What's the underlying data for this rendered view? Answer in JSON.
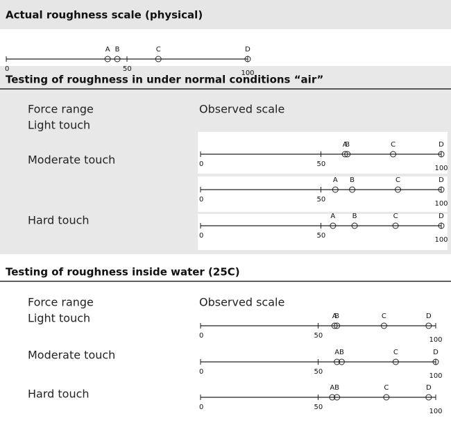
{
  "sections": [
    {
      "title": "Actual roughness scale (physical)",
      "scale": {
        "ticks": [
          0,
          50,
          100
        ],
        "points": [
          {
            "label": "A",
            "value": 42
          },
          {
            "label": "B",
            "value": 46
          },
          {
            "label": "C",
            "value": 63
          },
          {
            "label": "D",
            "value": 100
          }
        ]
      }
    },
    {
      "title": "Testing of roughness in under normal conditions “air”",
      "column_headers": [
        "Force range",
        "Observed scale"
      ],
      "rows": [
        {
          "label": "Light touch",
          "scale": {
            "ticks": [
              0,
              50,
              100
            ],
            "points": [
              {
                "label": "A",
                "value": 60
              },
              {
                "label": "B",
                "value": 61
              },
              {
                "label": "C",
                "value": 80
              },
              {
                "label": "D",
                "value": 100
              }
            ]
          }
        },
        {
          "label": "Moderate touch",
          "scale": {
            "ticks": [
              0,
              50,
              100
            ],
            "points": [
              {
                "label": "A",
                "value": 56
              },
              {
                "label": "B",
                "value": 63
              },
              {
                "label": "C",
                "value": 82
              },
              {
                "label": "D",
                "value": 100
              }
            ]
          }
        },
        {
          "label": "Hard touch",
          "scale": {
            "ticks": [
              0,
              50,
              100
            ],
            "points": [
              {
                "label": "A",
                "value": 55
              },
              {
                "label": "B",
                "value": 64
              },
              {
                "label": "C",
                "value": 81
              },
              {
                "label": "D",
                "value": 100
              }
            ]
          }
        }
      ]
    },
    {
      "title": "Testing of roughness inside water (25C)",
      "column_headers": [
        "Force range",
        "Observed scale"
      ],
      "rows": [
        {
          "label": "Light touch",
          "scale": {
            "ticks": [
              0,
              50,
              100
            ],
            "points": [
              {
                "label": "A",
                "value": 57
              },
              {
                "label": "B",
                "value": 58
              },
              {
                "label": "C",
                "value": 78
              },
              {
                "label": "D",
                "value": 97
              }
            ]
          }
        },
        {
          "label": "Moderate touch",
          "scale": {
            "ticks": [
              0,
              50,
              100
            ],
            "points": [
              {
                "label": "A",
                "value": 58
              },
              {
                "label": "B",
                "value": 60
              },
              {
                "label": "C",
                "value": 83
              },
              {
                "label": "D",
                "value": 100
              }
            ]
          }
        },
        {
          "label": "Hard touch",
          "scale": {
            "ticks": [
              0,
              50,
              100
            ],
            "points": [
              {
                "label": "A",
                "value": 56
              },
              {
                "label": "B",
                "value": 58
              },
              {
                "label": "C",
                "value": 79
              },
              {
                "label": "D",
                "value": 97
              }
            ]
          }
        }
      ]
    }
  ]
}
